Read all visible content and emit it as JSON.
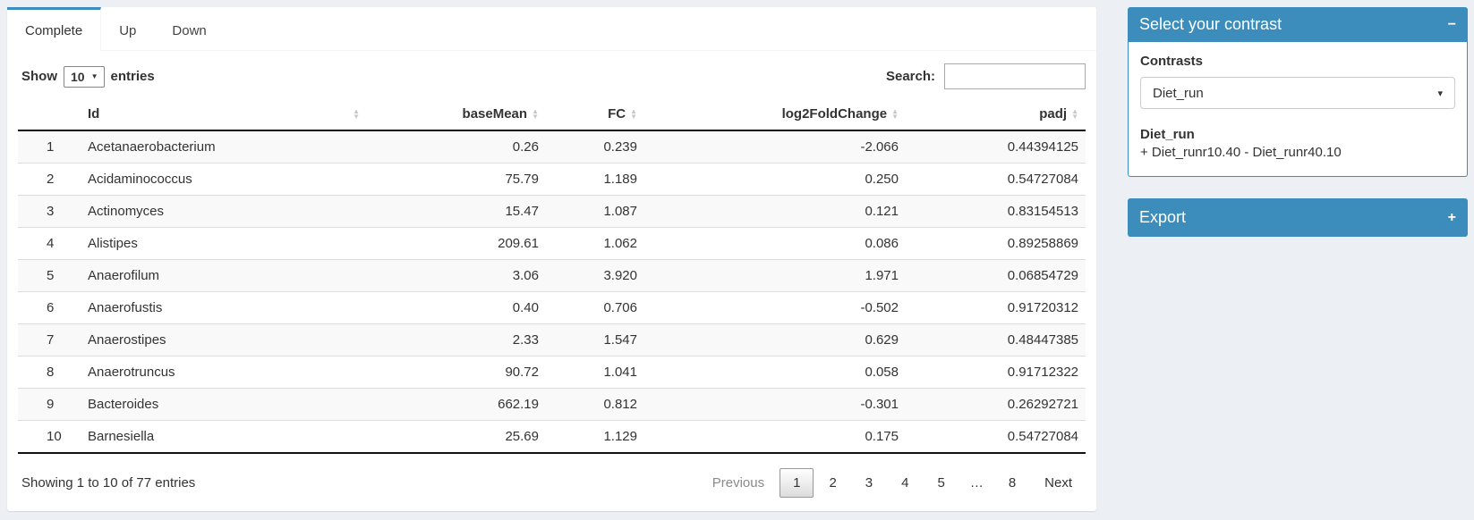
{
  "tabs": [
    {
      "label": "Complete",
      "active": true
    },
    {
      "label": "Up",
      "active": false
    },
    {
      "label": "Down",
      "active": false
    }
  ],
  "length_menu": {
    "show_label": "Show",
    "selected": "10",
    "entries_label": "entries"
  },
  "search": {
    "label": "Search:",
    "value": ""
  },
  "table": {
    "columns": [
      {
        "label": "",
        "sortable": false
      },
      {
        "label": "Id",
        "sortable": true
      },
      {
        "label": "baseMean",
        "sortable": true
      },
      {
        "label": "FC",
        "sortable": true
      },
      {
        "label": "log2FoldChange",
        "sortable": true
      },
      {
        "label": "padj",
        "sortable": true
      }
    ],
    "rows": [
      [
        "1",
        "Acetanaerobacterium",
        "0.26",
        "0.239",
        "-2.066",
        "0.44394125"
      ],
      [
        "2",
        "Acidaminococcus",
        "75.79",
        "1.189",
        "0.250",
        "0.54727084"
      ],
      [
        "3",
        "Actinomyces",
        "15.47",
        "1.087",
        "0.121",
        "0.83154513"
      ],
      [
        "4",
        "Alistipes",
        "209.61",
        "1.062",
        "0.086",
        "0.89258869"
      ],
      [
        "5",
        "Anaerofilum",
        "3.06",
        "3.920",
        "1.971",
        "0.06854729"
      ],
      [
        "6",
        "Anaerofustis",
        "0.40",
        "0.706",
        "-0.502",
        "0.91720312"
      ],
      [
        "7",
        "Anaerostipes",
        "2.33",
        "1.547",
        "0.629",
        "0.48447385"
      ],
      [
        "8",
        "Anaerotruncus",
        "90.72",
        "1.041",
        "0.058",
        "0.91712322"
      ],
      [
        "9",
        "Bacteroides",
        "662.19",
        "0.812",
        "-0.301",
        "0.26292721"
      ],
      [
        "10",
        "Barnesiella",
        "25.69",
        "1.129",
        "0.175",
        "0.54727084"
      ]
    ]
  },
  "info": "Showing 1 to 10 of 77 entries",
  "pagination": {
    "previous": "Previous",
    "next": "Next",
    "pages": [
      "1",
      "2",
      "3",
      "4",
      "5",
      "…",
      "8"
    ],
    "active": "1"
  },
  "contrast_box": {
    "title": "Select your contrast",
    "collapse_icon": "−",
    "contrasts_label": "Contrasts",
    "selected_contrast": "Diet_run",
    "contrast_name": "Diet_run",
    "contrast_formula": "+ Diet_runr10.40 - Diet_runr40.10"
  },
  "export_box": {
    "title": "Export",
    "expand_icon": "+"
  },
  "colors": {
    "accent": "#3c8dbc",
    "page_bg": "#ecf0f5",
    "stripe": "#f9f9f9"
  }
}
